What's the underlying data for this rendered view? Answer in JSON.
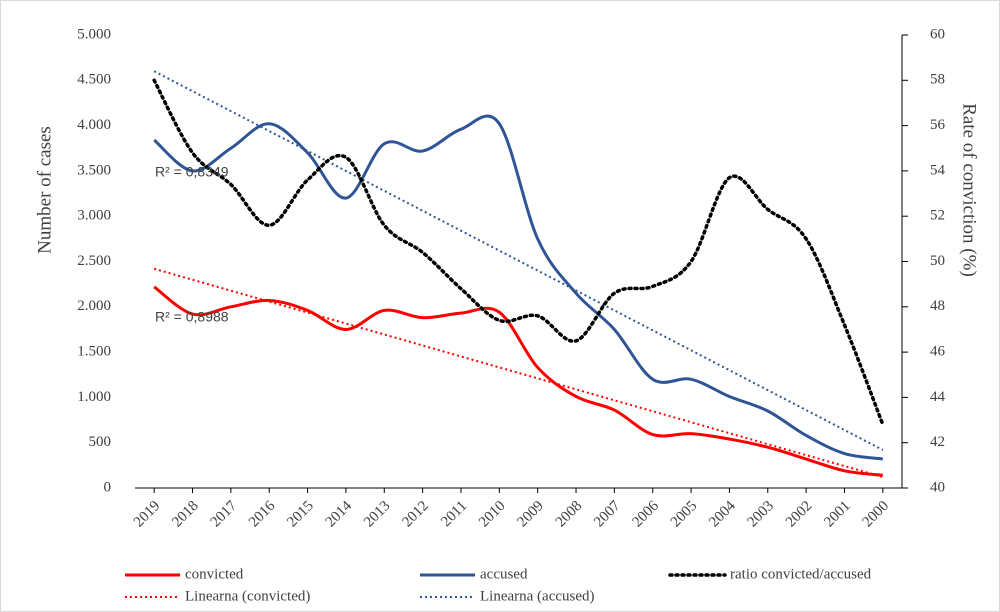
{
  "chart_data": {
    "type": "line",
    "y_label": "Number of cases",
    "y2_label": "Rate of conviction (%)",
    "categories": [
      "2019",
      "2018",
      "2017",
      "2016",
      "2015",
      "2014",
      "2013",
      "2012",
      "2011",
      "2010",
      "2009",
      "2008",
      "2007",
      "2006",
      "2005",
      "2004",
      "2003",
      "2002",
      "2001",
      "2000"
    ],
    "series": [
      {
        "name": "convicted",
        "color": "#ff0000",
        "style": "solid",
        "values": [
          2220,
          1920,
          2000,
          2070,
          1960,
          1750,
          1960,
          1880,
          1930,
          1940,
          1330,
          1010,
          860,
          590,
          600,
          540,
          450,
          320,
          190,
          140
        ]
      },
      {
        "name": "accused",
        "color": "#2f5597",
        "style": "solid",
        "values": [
          3840,
          3500,
          3750,
          4020,
          3700,
          3200,
          3800,
          3720,
          3960,
          4020,
          2750,
          2150,
          1750,
          1200,
          1200,
          1010,
          850,
          580,
          380,
          320
        ]
      },
      {
        "name": "ratio convicted/accused",
        "color": "#000000",
        "style": "dotted",
        "axis": "y2",
        "values": [
          58,
          54.8,
          53.4,
          51.6,
          53.6,
          54.6,
          51.6,
          50.4,
          48.8,
          47.4,
          47.6,
          46.5,
          48.6,
          48.9,
          50,
          53.7,
          52.3,
          51,
          47.2,
          42.8
        ]
      },
      {
        "name": "Linearna (convicted)",
        "color": "#ff0000",
        "style": "trend",
        "values": [
          2420,
          2299,
          2178,
          2057,
          1936,
          1815,
          1694,
          1573,
          1452,
          1331,
          1210,
          1089,
          968,
          847,
          726,
          605,
          484,
          363,
          242,
          121
        ]
      },
      {
        "name": "Linearna (accused)",
        "color": "#2f5597",
        "style": "trend",
        "values": [
          4600,
          4380,
          4160,
          3940,
          3720,
          3500,
          3280,
          3060,
          2840,
          2620,
          2400,
          2180,
          1960,
          1740,
          1520,
          1300,
          1080,
          860,
          640,
          420
        ]
      }
    ],
    "annotations": [
      {
        "text": "R² = 0,8349",
        "color": "#2f5597"
      },
      {
        "text": "R² = 0,8988",
        "color": "#ff0000"
      }
    ],
    "ylim": [
      0,
      5000
    ],
    "yticks": [
      {
        "value": 0,
        "label": "0"
      },
      {
        "value": 500,
        "label": "500"
      },
      {
        "value": 1000,
        "label": "1.000"
      },
      {
        "value": 1500,
        "label": "1.500"
      },
      {
        "value": 2000,
        "label": "2.000"
      },
      {
        "value": 2500,
        "label": "2.500"
      },
      {
        "value": 3000,
        "label": "3.000"
      },
      {
        "value": 3500,
        "label": "3.500"
      },
      {
        "value": 4000,
        "label": "4.000"
      },
      {
        "value": 4500,
        "label": "4.500"
      },
      {
        "value": 5000,
        "label": "5.000"
      }
    ],
    "y2lim": [
      40,
      60
    ],
    "y2ticks": [
      40,
      42,
      44,
      46,
      48,
      50,
      52,
      54,
      56,
      58,
      60
    ],
    "grid": false
  }
}
